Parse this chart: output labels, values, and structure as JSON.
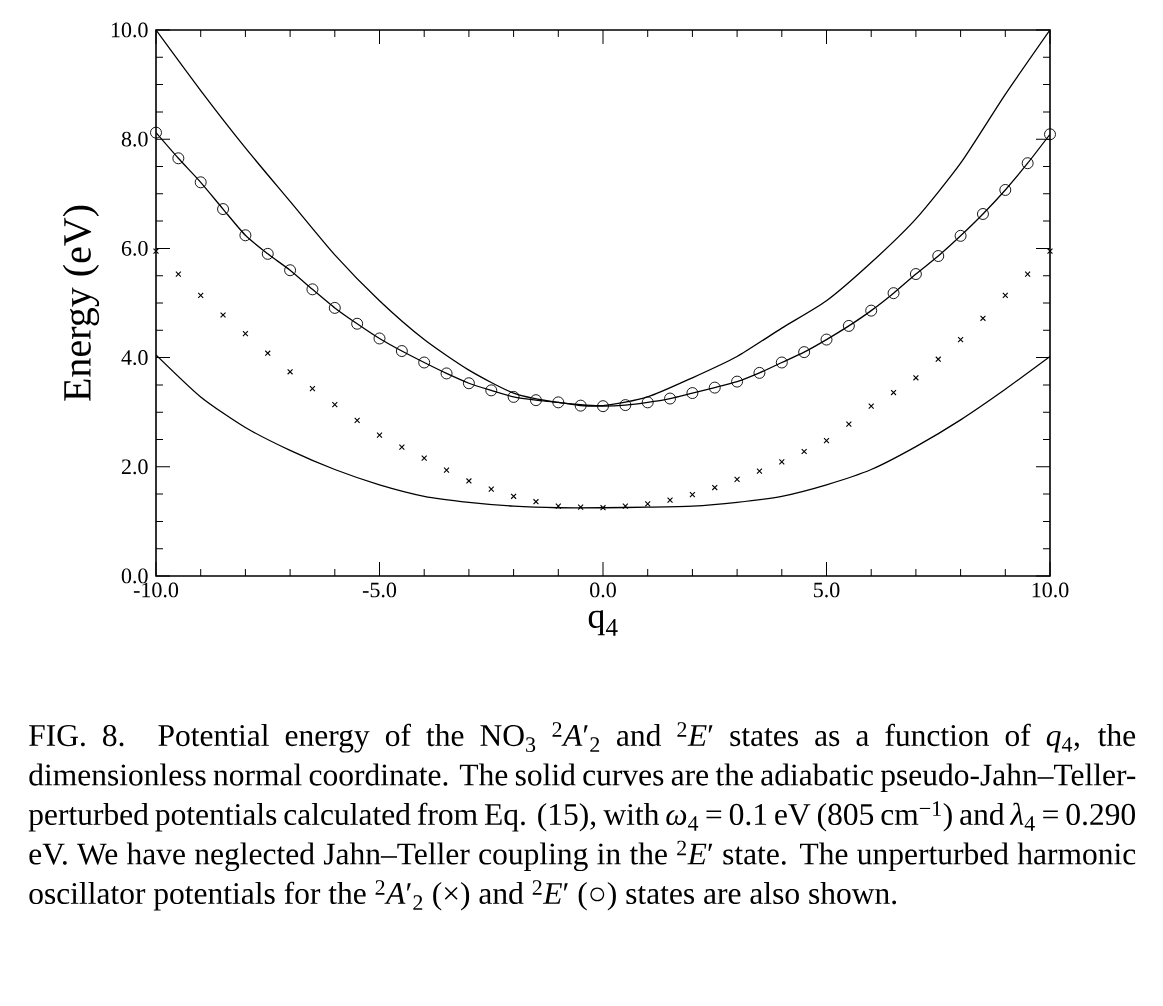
{
  "chart_data": {
    "type": "line",
    "xlabel": "q$_{4}$",
    "ylabel": "Energy (eV)",
    "x": [
      -10,
      -9.5,
      -9,
      -8.5,
      -8,
      -7.5,
      -7,
      -6.5,
      -6,
      -5.5,
      -5,
      -4.5,
      -4,
      -3.5,
      -3,
      -2.5,
      -2,
      -1.5,
      -1,
      -0.5,
      0,
      0.5,
      1,
      1.5,
      2,
      2.5,
      3,
      3.5,
      4,
      4.5,
      5,
      5.5,
      6,
      6.5,
      7,
      7.5,
      8,
      8.5,
      9,
      9.5,
      10
    ],
    "series": [
      {
        "marker": "none",
        "line_style": "solid",
        "color": "#000000",
        "x": [
          -10,
          -9,
          -8,
          -7,
          -6,
          -5,
          -4,
          -3,
          -2,
          -1,
          0,
          1,
          2,
          3,
          4,
          5,
          6,
          7,
          8,
          9,
          10
        ],
        "values": [
          10.0,
          8.89,
          7.84,
          6.86,
          5.88,
          5.04,
          4.33,
          3.77,
          3.35,
          3.18,
          3.12,
          3.28,
          3.63,
          4.02,
          4.54,
          5.04,
          5.74,
          6.54,
          7.56,
          8.82,
          10.0
        ]
      },
      {
        "marker": "none",
        "line_style": "solid",
        "color": "#000000",
        "x": [
          -10,
          -9,
          -8,
          -7,
          -6,
          -5,
          -4,
          -3,
          -2,
          -1,
          0,
          1,
          2,
          3,
          4,
          5,
          6,
          7,
          8,
          9,
          10
        ],
        "values": [
          4.05,
          3.28,
          2.72,
          2.3,
          1.95,
          1.67,
          1.46,
          1.35,
          1.28,
          1.25,
          1.25,
          1.26,
          1.28,
          1.35,
          1.46,
          1.67,
          1.95,
          2.37,
          2.86,
          3.42,
          4.02
        ]
      },
      {
        "marker": "circle",
        "line_style": "solid",
        "color": "#000000",
        "values": [
          8.12,
          7.65,
          7.21,
          6.72,
          6.24,
          5.9,
          5.6,
          5.25,
          4.91,
          4.62,
          4.35,
          4.12,
          3.91,
          3.71,
          3.53,
          3.4,
          3.28,
          3.22,
          3.18,
          3.12,
          3.11,
          3.13,
          3.18,
          3.25,
          3.35,
          3.45,
          3.56,
          3.72,
          3.91,
          4.1,
          4.33,
          4.58,
          4.86,
          5.18,
          5.53,
          5.86,
          6.23,
          6.63,
          7.07,
          7.56,
          8.09
        ]
      },
      {
        "type": "scatter",
        "marker": "cross",
        "color": "#000000",
        "values": [
          5.95,
          5.53,
          5.14,
          4.78,
          4.44,
          4.08,
          3.74,
          3.43,
          3.14,
          2.85,
          2.58,
          2.36,
          2.16,
          1.94,
          1.74,
          1.59,
          1.46,
          1.36,
          1.28,
          1.26,
          1.25,
          1.28,
          1.32,
          1.39,
          1.49,
          1.62,
          1.77,
          1.92,
          2.09,
          2.28,
          2.48,
          2.78,
          3.11,
          3.36,
          3.63,
          3.97,
          4.33,
          4.72,
          5.14,
          5.53,
          5.95
        ]
      }
    ],
    "xlim": [
      -10,
      10
    ],
    "ylim": [
      0,
      10
    ],
    "xticks": [
      {
        "value": -10,
        "label": "-10.0"
      },
      {
        "value": -5,
        "label": "-5.0"
      },
      {
        "value": 0,
        "label": "0.0"
      },
      {
        "value": 5,
        "label": "5.0"
      },
      {
        "value": 10,
        "label": "10.0"
      }
    ],
    "yticks": [
      {
        "value": 0,
        "label": "0.0"
      },
      {
        "value": 2,
        "label": "2.0"
      },
      {
        "value": 4,
        "label": "4.0"
      },
      {
        "value": 6,
        "label": "6.0"
      },
      {
        "value": 8,
        "label": "8.0"
      },
      {
        "value": 10,
        "label": "10.0"
      }
    ],
    "grid": false,
    "annotations": [
      "FIG. 8. Potential energy of the NO$_{3}$ $^{2}$*A*′$_{2}$ and $^{2}$*E*′ states as a function of *q*$_{4}$, the dimensionless normal coordinate. The solid curves are the adiabatic pseudo-Jahn–Teller-perturbed potentials calculated from Eq. (15), with *ω*$_{4}$ = 0.1 eV (805 cm$^{−1}$) and *λ*$_{4}$ = 0.290 eV. We have neglected Jahn–Teller coupling in the $^{2}$*E*′ state. The unperturbed harmonic oscillator potentials for the $^{2}$*A*′$_{2}$ (×) and $^{2}$*E*′ (○) states are also shown."
    ]
  }
}
